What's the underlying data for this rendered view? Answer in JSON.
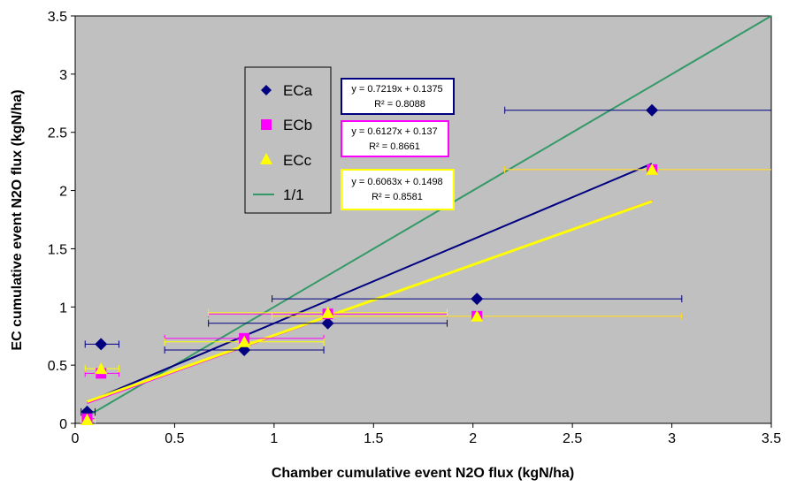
{
  "chart_data": {
    "type": "scatter",
    "xlabel": "Chamber cumulative event N2O flux (kgN/ha)",
    "ylabel": "EC cumulative event N2O flux (kgN/ha)",
    "xlim": [
      0,
      3.5
    ],
    "ylim": [
      0,
      3.5
    ],
    "xticks": [
      "0",
      "0.5",
      "1",
      "1.5",
      "2",
      "2.5",
      "3",
      "3.5"
    ],
    "yticks": [
      "0",
      "0.5",
      "1",
      "1.5",
      "2",
      "2.5",
      "3",
      "3.5"
    ],
    "plot_background": "#c0c0c0",
    "grid": false,
    "legend_position": "upper-left",
    "series": [
      {
        "name": "ECa",
        "color": "#000080",
        "marker": "diamond",
        "points": [
          {
            "x": 0.06,
            "y": 0.1,
            "xerr": [
              0.03,
              0.1
            ]
          },
          {
            "x": 0.13,
            "y": 0.68,
            "xerr": [
              0.05,
              0.22
            ]
          },
          {
            "x": 0.85,
            "y": 0.63,
            "xerr": [
              0.45,
              1.25
            ]
          },
          {
            "x": 1.27,
            "y": 0.86,
            "xerr": [
              0.67,
              1.87
            ]
          },
          {
            "x": 2.02,
            "y": 1.07,
            "xerr": [
              0.99,
              3.05
            ]
          },
          {
            "x": 2.9,
            "y": 2.69,
            "xerr": [
              2.16,
              3.5
            ]
          }
        ],
        "trendline": {
          "slope": 0.7219,
          "intercept": 0.1375,
          "x_range": [
            0.06,
            2.9
          ]
        },
        "equation": "y = 0.7219x + 0.1375",
        "r2": "R² = 0.8088"
      },
      {
        "name": "ECb",
        "color": "#ff00ff",
        "marker": "square",
        "points": [
          {
            "x": 0.06,
            "y": 0.04,
            "xerr": [
              0.03,
              0.1
            ]
          },
          {
            "x": 0.13,
            "y": 0.43,
            "xerr": [
              0.05,
              0.22
            ]
          },
          {
            "x": 0.85,
            "y": 0.73,
            "xerr": [
              0.45,
              1.25
            ]
          },
          {
            "x": 1.27,
            "y": 0.94,
            "xerr": [
              0.67,
              1.87
            ]
          },
          {
            "x": 2.02,
            "y": 0.92,
            "xerr": [
              0.99,
              3.05
            ]
          },
          {
            "x": 2.9,
            "y": 2.18,
            "xerr": [
              2.16,
              3.5
            ]
          }
        ],
        "trendline": {
          "slope": 0.6127,
          "intercept": 0.137,
          "x_range": [
            0.06,
            2.9
          ]
        },
        "equation": "y = 0.6127x + 0.137",
        "r2": "R² = 0.8661"
      },
      {
        "name": "ECc",
        "color": "#ffff00",
        "marker": "triangle",
        "points": [
          {
            "x": 0.06,
            "y": 0.03,
            "xerr": [
              0.03,
              0.1
            ]
          },
          {
            "x": 0.13,
            "y": 0.47,
            "xerr": [
              0.05,
              0.22
            ]
          },
          {
            "x": 0.85,
            "y": 0.7,
            "xerr": [
              0.45,
              1.25
            ]
          },
          {
            "x": 1.27,
            "y": 0.95,
            "xerr": [
              0.67,
              1.87
            ]
          },
          {
            "x": 2.02,
            "y": 0.92,
            "xerr": [
              0.99,
              3.05
            ]
          },
          {
            "x": 2.9,
            "y": 2.18,
            "xerr": [
              2.16,
              3.5
            ]
          }
        ],
        "trendline": {
          "slope": 0.6063,
          "intercept": 0.1498,
          "x_range": [
            0.06,
            2.9
          ]
        },
        "equation": "y = 0.6063x + 0.1498",
        "r2": "R² = 0.8581"
      },
      {
        "name": "1/1",
        "color": "#339966",
        "marker": "line",
        "line": {
          "x": [
            0.06,
            3.5
          ],
          "y": [
            0.06,
            3.5
          ]
        }
      }
    ]
  }
}
